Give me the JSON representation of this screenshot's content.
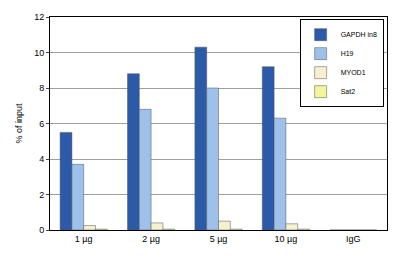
{
  "chart_data": {
    "type": "bar",
    "y_label": "% of input",
    "categories": [
      "1 µg",
      "2 µg",
      "5 µg",
      "10 µg",
      "IgG"
    ],
    "series": [
      {
        "name": "GAPDH in8",
        "color": "#2b5aa8",
        "values": [
          5.5,
          8.8,
          10.3,
          9.2,
          0
        ]
      },
      {
        "name": "H19",
        "color": "#9dc1ea",
        "values": [
          3.7,
          6.8,
          8.0,
          6.3,
          0
        ]
      },
      {
        "name": "MYOD1",
        "color": "#f6f0cf",
        "values": [
          0.25,
          0.4,
          0.5,
          0.35,
          0
        ]
      },
      {
        "name": "Sat2",
        "color": "#f2f59a",
        "values": [
          0.05,
          0.05,
          0.05,
          0.05,
          0
        ]
      }
    ],
    "ylim": [
      0,
      12
    ],
    "yticks": [
      0,
      2,
      4,
      6,
      8,
      10,
      12
    ],
    "grid": true,
    "legend": "top-right"
  }
}
